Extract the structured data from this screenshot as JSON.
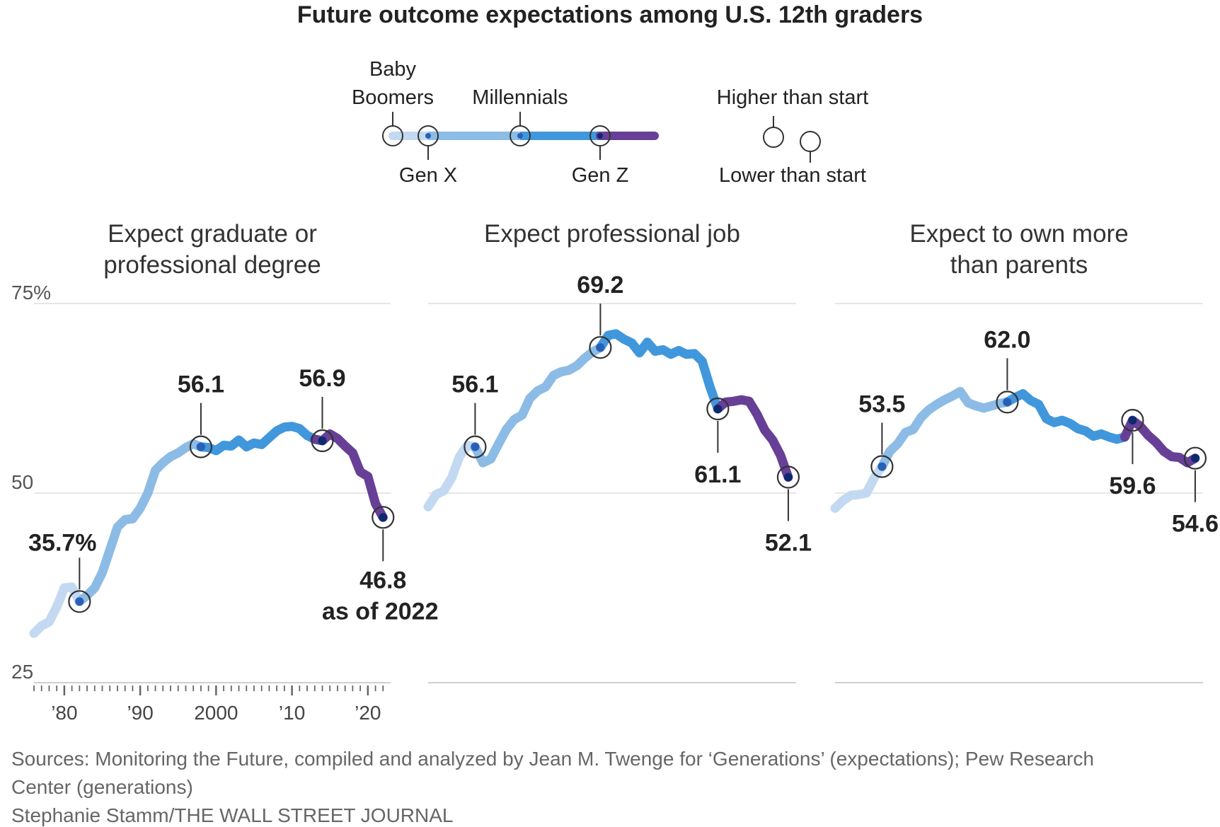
{
  "title": "Future outcome expectations among U.S. 12th graders",
  "legend": {
    "generations": [
      "Baby",
      "Boomers",
      "Millennials",
      "Gen X",
      "Gen Z"
    ],
    "direction": [
      "Higher than start",
      "Lower than start"
    ],
    "colors": {
      "baby_boomers": "#c2d9f1",
      "gen_x": "#8cbce6",
      "millennials": "#4197dc",
      "gen_z": "#673f96",
      "marker": "#2a5fb8",
      "marker_genz": "#0d2a6e"
    }
  },
  "chart_data": [
    {
      "type": "line",
      "title": "Expect graduate or professional degree",
      "title_lines": [
        "Expect graduate or",
        "professional degree"
      ],
      "ylabel": "",
      "ylim": [
        25,
        75
      ],
      "ytick_labels": [
        "75%",
        "50",
        "25"
      ],
      "xlim": [
        1976,
        2023
      ],
      "xtick_labels": [
        "’80",
        "’90",
        "2000",
        "’10",
        "’20"
      ],
      "x": [
        1976,
        1977,
        1978,
        1979,
        1980,
        1981,
        1982,
        1983,
        1984,
        1985,
        1986,
        1987,
        1988,
        1989,
        1990,
        1991,
        1992,
        1993,
        1994,
        1995,
        1996,
        1997,
        1998,
        1999,
        2000,
        2001,
        2002,
        2003,
        2004,
        2005,
        2006,
        2007,
        2008,
        2009,
        2010,
        2011,
        2012,
        2013,
        2014,
        2015,
        2016,
        2017,
        2018,
        2019,
        2020,
        2021,
        2022
      ],
      "y": [
        31.5,
        32.5,
        33,
        35,
        37.5,
        37.6,
        35.7,
        36.5,
        37.5,
        39.5,
        42.5,
        45.5,
        46.5,
        46.6,
        48,
        50,
        53,
        54,
        54.8,
        55.3,
        56,
        56.5,
        56.1,
        56,
        55.6,
        56.3,
        56.2,
        57,
        56.1,
        56.6,
        56.4,
        57.3,
        58.2,
        58.7,
        58.8,
        58.5,
        57.6,
        57.1,
        56.9,
        57.8,
        57.2,
        56.2,
        55.3,
        52.8,
        52.2,
        48.6,
        46.8
      ],
      "annotations": [
        {
          "x": 1982,
          "y": 35.7,
          "label": "35.7%"
        },
        {
          "x": 1998,
          "y": 56.1,
          "label": "56.1"
        },
        {
          "x": 2014,
          "y": 56.9,
          "label": "56.9"
        },
        {
          "x": 2022,
          "y": 46.8,
          "label": "46.8",
          "note": "as of 2022"
        }
      ]
    },
    {
      "type": "line",
      "title": "Expect professional job",
      "title_lines": [
        "Expect professional job"
      ],
      "ylim": [
        25,
        75
      ],
      "xlim": [
        1976,
        2023
      ],
      "x": [
        1976,
        1977,
        1978,
        1979,
        1980,
        1981,
        1982,
        1983,
        1984,
        1985,
        1986,
        1987,
        1988,
        1989,
        1990,
        1991,
        1992,
        1993,
        1994,
        1995,
        1996,
        1997,
        1998,
        1999,
        2000,
        2001,
        2002,
        2003,
        2004,
        2005,
        2006,
        2007,
        2008,
        2009,
        2010,
        2011,
        2012,
        2013,
        2014,
        2015,
        2016,
        2017,
        2018,
        2019,
        2020,
        2021,
        2022
      ],
      "y": [
        48.2,
        49.8,
        50.3,
        52,
        54.8,
        56.3,
        56.1,
        54,
        54.5,
        56.5,
        58.4,
        59.7,
        60.3,
        62.5,
        63.5,
        64,
        65.5,
        66,
        66.2,
        66.8,
        67.8,
        68.6,
        69.2,
        70.8,
        71,
        70.3,
        69.8,
        68.5,
        69.9,
        68.7,
        68.9,
        68.3,
        68.8,
        68.3,
        68.4,
        67.4,
        64,
        61.1,
        62,
        62.1,
        62.3,
        62.1,
        60.4,
        58.3,
        57,
        55,
        52.1
      ],
      "annotations": [
        {
          "x": 1982,
          "y": 56.1,
          "label": "56.1"
        },
        {
          "x": 1998,
          "y": 69.2,
          "label": "69.2"
        },
        {
          "x": 2013,
          "y": 61.1,
          "label": "61.1"
        },
        {
          "x": 2022,
          "y": 52.1,
          "label": "52.1"
        }
      ]
    },
    {
      "type": "line",
      "title": "Expect to own more than parents",
      "title_lines": [
        "Expect to own more",
        "than parents"
      ],
      "ylim": [
        25,
        75
      ],
      "xlim": [
        1976,
        2023
      ],
      "x": [
        1976,
        1977,
        1978,
        1979,
        1980,
        1981,
        1982,
        1983,
        1984,
        1985,
        1986,
        1987,
        1988,
        1989,
        1990,
        1991,
        1992,
        1993,
        1994,
        1995,
        1996,
        1997,
        1998,
        1999,
        2000,
        2001,
        2002,
        2003,
        2004,
        2005,
        2006,
        2007,
        2008,
        2009,
        2010,
        2011,
        2012,
        2013,
        2014,
        2015,
        2016,
        2017,
        2018,
        2019,
        2020,
        2021,
        2022
      ],
      "y": [
        48,
        49,
        49.7,
        49.8,
        50,
        52,
        53.5,
        55.5,
        56.5,
        58,
        58.4,
        60,
        61,
        61.7,
        62.3,
        62.8,
        63.4,
        61.9,
        61.5,
        61.2,
        61.5,
        61.8,
        62,
        62.6,
        63.1,
        62.2,
        61.7,
        59.8,
        59.3,
        59.6,
        59.2,
        58.5,
        58.2,
        57.5,
        57.8,
        57.4,
        57.1,
        57.4,
        59.6,
        58.8,
        57.6,
        56.7,
        55.5,
        54.8,
        54.7,
        54,
        54.6
      ],
      "annotations": [
        {
          "x": 1982,
          "y": 53.5,
          "label": "53.5"
        },
        {
          "x": 1998,
          "y": 62.0,
          "label": "62.0"
        },
        {
          "x": 2014,
          "y": 59.6,
          "label": "59.6"
        },
        {
          "x": 2022,
          "y": 54.6,
          "label": "54.6"
        }
      ]
    }
  ],
  "footer": {
    "sources_line1": "Sources: Monitoring the Future, compiled and analyzed by Jean M. Twenge for  ‘Generations’ (expectations); Pew Research",
    "sources_line2": "Center (generations)",
    "credit": "Stephanie Stamm/THE WALL STREET JOURNAL"
  }
}
